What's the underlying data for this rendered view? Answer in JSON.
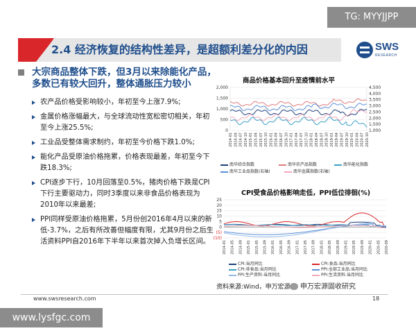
{
  "watermarks": {
    "top": "TG: MYYJJPP",
    "bottom": "www.lysfgc.com"
  },
  "title": "2.4 经济恢复的结构性差异，是超额利差分化的内因",
  "logo": {
    "name": "SWS",
    "sub": "RESEARCH"
  },
  "headline": "大宗商品整体下跌，但3月以来除能化产品，多数已有较大回升，整体通胀压力较小",
  "bullets": [
    "农产品价格受影响较小，年初至今上涨7.9%;",
    "金属价格涨幅最大，与全球流动性宽松密切相关，年初至今上涨25.5%;",
    "工业品受整体需求制约，年初至今价格下跌1.0%;",
    "能化产品受原油价格拖累，价格表现最差，年初至今下跌18.3%;",
    "CPI逐步下行，10月回落至0.5%，猪肉价格下跌是CPI下行主要驱动力，同时3季度以来非食品价格表现为2010年以来最差;",
    "PPI同样受原油价格拖累，5月份创2016年4月以来的新低-3.7%，之后有所改善但幅度有限，尤其9月份之后生活资料PPI自2016年下半年以来首次掉入负增长区间。"
  ],
  "chart1": {
    "title": "商品价格基本回升至疫情前水平",
    "y_left_ticks": [
      "2,000",
      "1,500",
      "1,000",
      "500",
      "0"
    ],
    "y_right_ticks": [
      "4,500",
      "4,000",
      "3,500",
      "3,000",
      "2,500",
      "2,000",
      "1,500",
      "1,000"
    ],
    "x_ticks": [
      "2014-01",
      "2014-04",
      "2014-07",
      "2014-10",
      "2015-01",
      "2015-04",
      "2015-07",
      "2015-10",
      "2016-01",
      "2016-04",
      "2016-07",
      "2016-10",
      "2017-01",
      "2017-04",
      "2017-07",
      "2017-10",
      "2018-01",
      "2018-04",
      "2018-07",
      "2018-10",
      "2019-01",
      "2019-04",
      "2019-07",
      "2019-10",
      "2020-01",
      "2020-04",
      "2020-07",
      "2020-10"
    ],
    "legend": [
      "南华综合指数",
      "南华农产品指数",
      "南华能化指数",
      "南华工业品指数(右轴)",
      "南华金属指数(右轴)"
    ],
    "colors": [
      "#1f3f7a",
      "#e07a7a",
      "#3aa0c8",
      "#5b8fd6",
      "#f0a8b8"
    ]
  },
  "chart2": {
    "title": "CPI受食品价格影响走低，PPI低位徘徊(%)",
    "y_ticks": [
      "25",
      "20",
      "15",
      "10",
      "5",
      "0",
      "(5)",
      "(10)"
    ],
    "x_ticks": [
      "2014-01",
      "2014-05",
      "2014-09",
      "2015-01",
      "2015-05",
      "2015-09",
      "2016-01",
      "2016-05",
      "2016-09",
      "2017-01",
      "2017-05",
      "2017-09",
      "2018-01",
      "2018-05",
      "2018-09",
      "2019-01",
      "2019-05",
      "2019-09",
      "2020-01",
      "2020-05",
      "2020-09"
    ],
    "legend": [
      "CPI:当月同比",
      "CPI:食品:当月同比",
      "CPI:非食品:当月同比",
      "PPI:全部工业品:当月同比",
      "PPI:生产资料:当月同比",
      "PPI:生活资料:当月同比"
    ],
    "colors": [
      "#1f3f7a",
      "#d9262a",
      "#3aa0c8",
      "#5b8fd6",
      "#8fb8e8",
      "#f0a8b8"
    ]
  },
  "source": "资料来源:Wind，申万宏源",
  "wechat": "申万宏源固收研究",
  "footer_url": "www.swsresearch.com",
  "page_number": "18"
}
